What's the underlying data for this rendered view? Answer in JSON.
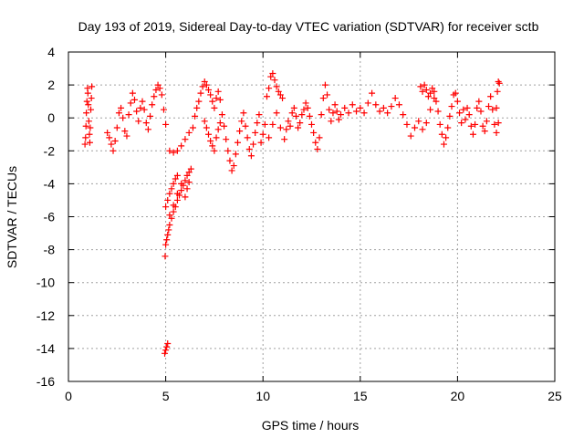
{
  "chart_data": {
    "type": "scatter",
    "title": "Day 193 of 2019, Sidereal Day-to-day VTEC variation (SDTVAR) for receiver sctb",
    "xlabel": "GPS time / hours",
    "ylabel": "SDTVAR / TECUs",
    "xlim": [
      0,
      25
    ],
    "ylim": [
      -16,
      4
    ],
    "xticks": [
      "0",
      "5",
      "10",
      "15",
      "20",
      "25"
    ],
    "yticks": [
      "4",
      "2",
      "0",
      "-2",
      "-4",
      "-6",
      "-8",
      "-10",
      "-12",
      "-14",
      "-16"
    ],
    "xtick_values": [
      0,
      5,
      10,
      15,
      20,
      25
    ],
    "ytick_values": [
      4,
      2,
      0,
      -2,
      -4,
      -6,
      -8,
      -10,
      -12,
      -14,
      -16
    ],
    "grid": true,
    "marker": "+",
    "series": [
      {
        "name": "SDTVAR",
        "color": "#ff0000",
        "points": [
          [
            0.85,
            -1.6
          ],
          [
            0.88,
            -1.2
          ],
          [
            0.9,
            -0.5
          ],
          [
            0.92,
            0.3
          ],
          [
            0.95,
            1.0
          ],
          [
            0.98,
            1.8
          ],
          [
            1.0,
            1.5
          ],
          [
            1.02,
            0.8
          ],
          [
            1.05,
            -0.2
          ],
          [
            1.08,
            -1.0
          ],
          [
            1.1,
            -1.5
          ],
          [
            1.12,
            -0.6
          ],
          [
            1.15,
            0.5
          ],
          [
            1.18,
            1.2
          ],
          [
            1.2,
            1.9
          ],
          [
            2.0,
            -0.9
          ],
          [
            2.1,
            -1.2
          ],
          [
            2.2,
            -1.6
          ],
          [
            2.3,
            -2.0
          ],
          [
            2.4,
            -1.4
          ],
          [
            2.5,
            -0.6
          ],
          [
            2.6,
            0.3
          ],
          [
            2.7,
            0.6
          ],
          [
            2.8,
            0.0
          ],
          [
            2.9,
            -0.8
          ],
          [
            3.0,
            -1.1
          ],
          [
            3.1,
            0.2
          ],
          [
            3.2,
            0.9
          ],
          [
            3.3,
            1.5
          ],
          [
            3.4,
            1.1
          ],
          [
            3.5,
            0.4
          ],
          [
            3.6,
            -0.2
          ],
          [
            3.7,
            0.6
          ],
          [
            3.8,
            1.0
          ],
          [
            3.9,
            0.5
          ],
          [
            4.0,
            -0.3
          ],
          [
            4.1,
            -0.7
          ],
          [
            4.2,
            0.1
          ],
          [
            4.3,
            0.8
          ],
          [
            4.4,
            1.3
          ],
          [
            4.5,
            1.7
          ],
          [
            4.6,
            2.0
          ],
          [
            4.7,
            1.8
          ],
          [
            4.8,
            1.4
          ],
          [
            4.9,
            0.5
          ],
          [
            5.0,
            -0.4
          ],
          [
            4.95,
            -14.3
          ],
          [
            5.0,
            -14.1
          ],
          [
            5.05,
            -13.9
          ],
          [
            5.1,
            -13.7
          ],
          [
            4.97,
            -8.4
          ],
          [
            5.0,
            -7.7
          ],
          [
            5.05,
            -7.4
          ],
          [
            5.1,
            -7.1
          ],
          [
            5.15,
            -6.8
          ],
          [
            5.2,
            -6.5
          ],
          [
            5.3,
            -6.1
          ],
          [
            5.4,
            -5.7
          ],
          [
            5.5,
            -5.4
          ],
          [
            5.6,
            -5.0
          ],
          [
            5.7,
            -4.7
          ],
          [
            5.8,
            -4.4
          ],
          [
            5.9,
            -4.1
          ],
          [
            6.0,
            -3.8
          ],
          [
            6.1,
            -3.5
          ],
          [
            6.2,
            -3.3
          ],
          [
            6.3,
            -3.1
          ],
          [
            5.0,
            -5.4
          ],
          [
            5.1,
            -5.0
          ],
          [
            5.2,
            -4.6
          ],
          [
            5.3,
            -4.3
          ],
          [
            5.4,
            -4.0
          ],
          [
            5.5,
            -3.7
          ],
          [
            5.6,
            -3.5
          ],
          [
            5.2,
            -5.9
          ],
          [
            5.4,
            -5.3
          ],
          [
            5.6,
            -4.6
          ],
          [
            5.8,
            -4.0
          ],
          [
            6.0,
            -4.8
          ],
          [
            6.1,
            -4.3
          ],
          [
            6.2,
            -3.9
          ],
          [
            5.2,
            -2.0
          ],
          [
            5.4,
            -2.1
          ],
          [
            5.6,
            -2.0
          ],
          [
            5.8,
            -1.7
          ],
          [
            6.0,
            -1.3
          ],
          [
            6.2,
            -0.9
          ],
          [
            6.4,
            -0.6
          ],
          [
            6.5,
            0.1
          ],
          [
            6.6,
            0.6
          ],
          [
            6.7,
            1.0
          ],
          [
            6.8,
            1.5
          ],
          [
            6.9,
            1.9
          ],
          [
            7.0,
            2.2
          ],
          [
            7.1,
            2.0
          ],
          [
            7.2,
            1.7
          ],
          [
            7.3,
            1.4
          ],
          [
            7.4,
            1.0
          ],
          [
            7.5,
            0.6
          ],
          [
            7.6,
            1.2
          ],
          [
            7.7,
            1.6
          ],
          [
            7.8,
            1.1
          ],
          [
            7.0,
            -0.2
          ],
          [
            7.1,
            -0.6
          ],
          [
            7.2,
            -1.0
          ],
          [
            7.3,
            -1.4
          ],
          [
            7.4,
            -1.7
          ],
          [
            7.5,
            -2.0
          ],
          [
            7.6,
            -1.2
          ],
          [
            7.7,
            -0.7
          ],
          [
            7.8,
            -0.3
          ],
          [
            7.9,
            0.2
          ],
          [
            8.0,
            -0.5
          ],
          [
            8.1,
            -1.3
          ],
          [
            8.2,
            -2.0
          ],
          [
            8.3,
            -2.6
          ],
          [
            8.4,
            -3.2
          ],
          [
            8.5,
            -2.9
          ],
          [
            8.6,
            -2.2
          ],
          [
            8.7,
            -1.5
          ],
          [
            8.8,
            -0.8
          ],
          [
            8.9,
            -0.2
          ],
          [
            9.0,
            0.3
          ],
          [
            9.1,
            -0.5
          ],
          [
            9.2,
            -1.2
          ],
          [
            9.3,
            -1.9
          ],
          [
            9.4,
            -2.3
          ],
          [
            9.5,
            -1.6
          ],
          [
            9.6,
            -0.9
          ],
          [
            9.7,
            -0.3
          ],
          [
            9.8,
            0.2
          ],
          [
            9.9,
            -1.5
          ],
          [
            10.0,
            -1.0
          ],
          [
            10.1,
            -0.4
          ],
          [
            10.2,
            1.3
          ],
          [
            10.3,
            1.8
          ],
          [
            10.4,
            2.5
          ],
          [
            10.5,
            2.7
          ],
          [
            10.6,
            2.3
          ],
          [
            10.7,
            1.9
          ],
          [
            10.8,
            1.6
          ],
          [
            10.9,
            1.4
          ],
          [
            11.0,
            1.2
          ],
          [
            10.3,
            -1.2
          ],
          [
            10.5,
            -0.4
          ],
          [
            10.7,
            0.3
          ],
          [
            10.9,
            -0.6
          ],
          [
            11.1,
            -1.3
          ],
          [
            11.2,
            -0.7
          ],
          [
            11.3,
            -0.2
          ],
          [
            11.4,
            -0.5
          ],
          [
            11.5,
            0.3
          ],
          [
            11.6,
            0.6
          ],
          [
            11.7,
            0.1
          ],
          [
            11.8,
            -0.6
          ],
          [
            11.9,
            -0.3
          ],
          [
            12.0,
            0.2
          ],
          [
            12.1,
            0.5
          ],
          [
            12.2,
            0.9
          ],
          [
            12.3,
            0.6
          ],
          [
            12.4,
            0.1
          ],
          [
            12.5,
            -0.4
          ],
          [
            12.6,
            -0.9
          ],
          [
            12.7,
            -1.5
          ],
          [
            12.8,
            -1.9
          ],
          [
            12.9,
            -1.2
          ],
          [
            13.0,
            0.2
          ],
          [
            13.1,
            1.2
          ],
          [
            13.2,
            2.0
          ],
          [
            13.3,
            1.4
          ],
          [
            13.4,
            0.5
          ],
          [
            13.5,
            -0.2
          ],
          [
            13.6,
            0.3
          ],
          [
            13.7,
            0.8
          ],
          [
            13.8,
            0.4
          ],
          [
            13.9,
            -0.1
          ],
          [
            14.0,
            0.2
          ],
          [
            14.2,
            0.6
          ],
          [
            14.4,
            0.3
          ],
          [
            14.6,
            0.8
          ],
          [
            14.8,
            0.4
          ],
          [
            15.0,
            0.6
          ],
          [
            15.2,
            0.3
          ],
          [
            15.4,
            0.9
          ],
          [
            15.6,
            1.5
          ],
          [
            15.8,
            0.8
          ],
          [
            16.0,
            0.4
          ],
          [
            16.2,
            0.6
          ],
          [
            16.4,
            0.3
          ],
          [
            16.6,
            0.7
          ],
          [
            16.8,
            1.2
          ],
          [
            17.0,
            0.8
          ],
          [
            17.2,
            0.2
          ],
          [
            17.4,
            -0.4
          ],
          [
            17.6,
            -1.1
          ],
          [
            17.8,
            -0.6
          ],
          [
            18.0,
            -0.2
          ],
          [
            18.2,
            -0.7
          ],
          [
            18.4,
            -0.3
          ],
          [
            18.6,
            0.5
          ],
          [
            18.8,
            1.2
          ],
          [
            18.1,
            1.9
          ],
          [
            18.2,
            1.6
          ],
          [
            18.3,
            2.0
          ],
          [
            18.4,
            1.7
          ],
          [
            18.5,
            1.3
          ],
          [
            18.6,
            1.5
          ],
          [
            18.7,
            1.8
          ],
          [
            18.8,
            1.6
          ],
          [
            18.9,
            1.0
          ],
          [
            19.0,
            0.4
          ],
          [
            19.1,
            -0.4
          ],
          [
            19.2,
            -1.0
          ],
          [
            19.3,
            -1.6
          ],
          [
            19.4,
            -1.2
          ],
          [
            19.5,
            -0.6
          ],
          [
            19.6,
            0.1
          ],
          [
            19.7,
            0.7
          ],
          [
            19.8,
            1.4
          ],
          [
            19.9,
            1.5
          ],
          [
            20.0,
            1.0
          ],
          [
            20.1,
            0.3
          ],
          [
            20.2,
            -0.3
          ],
          [
            20.3,
            0.5
          ],
          [
            20.4,
            -0.1
          ],
          [
            20.5,
            0.6
          ],
          [
            20.6,
            0.2
          ],
          [
            20.7,
            -0.5
          ],
          [
            20.8,
            -1.0
          ],
          [
            20.9,
            -0.4
          ],
          [
            21.0,
            0.6
          ],
          [
            21.1,
            1.0
          ],
          [
            21.2,
            0.4
          ],
          [
            21.3,
            -0.5
          ],
          [
            21.4,
            -0.8
          ],
          [
            21.5,
            -0.2
          ],
          [
            21.6,
            0.7
          ],
          [
            21.7,
            1.3
          ],
          [
            21.8,
            0.5
          ],
          [
            21.9,
            -0.4
          ],
          [
            22.0,
            0.6
          ],
          [
            22.05,
            1.6
          ],
          [
            22.1,
            2.2
          ],
          [
            22.15,
            2.1
          ],
          [
            22.0,
            -0.9
          ],
          [
            22.1,
            -0.3
          ]
        ]
      }
    ]
  }
}
